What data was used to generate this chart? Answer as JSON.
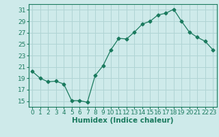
{
  "x": [
    0,
    1,
    2,
    3,
    4,
    5,
    6,
    7,
    8,
    9,
    10,
    11,
    12,
    13,
    14,
    15,
    16,
    17,
    18,
    19,
    20,
    21,
    22,
    23
  ],
  "y": [
    20.2,
    19.0,
    18.4,
    18.5,
    18.0,
    15.1,
    15.1,
    14.8,
    19.5,
    21.2,
    24.0,
    26.0,
    25.9,
    27.1,
    28.5,
    29.0,
    30.1,
    30.4,
    31.1,
    29.0,
    27.1,
    26.2,
    25.5,
    24.0
  ],
  "xlabel": "Humidex (Indice chaleur)",
  "ylim": [
    14,
    32
  ],
  "yticks": [
    15,
    17,
    19,
    21,
    23,
    25,
    27,
    29,
    31
  ],
  "xticks": [
    0,
    1,
    2,
    3,
    4,
    5,
    6,
    7,
    8,
    9,
    10,
    11,
    12,
    13,
    14,
    15,
    16,
    17,
    18,
    19,
    20,
    21,
    22,
    23
  ],
  "line_color": "#1a7a5e",
  "marker": "D",
  "marker_size": 2.5,
  "bg_color": "#ceeaea",
  "grid_color": "#b0d4d4",
  "axis_color": "#1a7a5e",
  "tick_label_color": "#1a7a5e",
  "xlabel_color": "#1a7a5e",
  "xlabel_fontsize": 7.5,
  "tick_fontsize": 6.5
}
